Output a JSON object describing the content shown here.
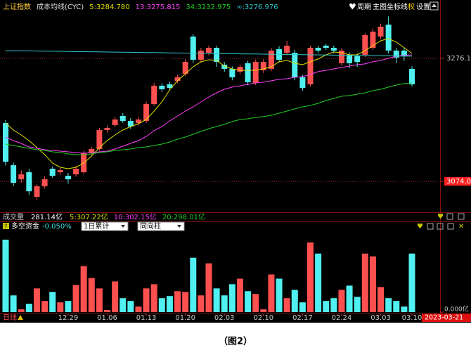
{
  "toolbar": {
    "index_name": "上证指数",
    "indicator": "成本均线(CYC)",
    "buttons": [
      "周期",
      "主图",
      "坐标线",
      "权",
      "设置"
    ]
  },
  "chart_data": [
    {
      "type": "candlestick",
      "up_color": "#ff5050",
      "down_color": "#50f0f0",
      "open": [
        3169.8,
        3100.5,
        3077.4,
        3089.0,
        3048.6,
        3065.9,
        3094.8,
        3089.0,
        3083.2,
        3085.5,
        3089.0,
        3120.2,
        3127.1,
        3158.3,
        3166.4,
        3181.4,
        3173.3,
        3169.8,
        3173.3,
        3201.0,
        3231.1,
        3233.4,
        3239.1,
        3250.7,
        3311.9,
        3273.8,
        3285.3,
        3293.4,
        3265.7,
        3258.8,
        3254.2,
        3268.0,
        3235.7,
        3256.5,
        3258.8,
        3291.1,
        3285.3,
        3285.3,
        3244.9,
        3233.4,
        3293.4,
        3296.9,
        3293.4,
        3268.0,
        3281.9,
        3279.6,
        3281.9,
        3293.4,
        3311.9,
        3331.5,
        3288.8,
        3288.8,
        3258.8
      ],
      "high": [
        3175,
        3105,
        3092,
        3094,
        3070,
        3082,
        3098,
        3096,
        3088,
        3099,
        3124,
        3131,
        3162,
        3166,
        3180,
        3186,
        3178,
        3180,
        3205,
        3236,
        3235,
        3238,
        3249,
        3275,
        3316,
        3293,
        3297,
        3297,
        3270,
        3263,
        3266,
        3272,
        3274,
        3275,
        3293,
        3296,
        3305,
        3290,
        3249,
        3297,
        3297,
        3300,
        3297,
        3293,
        3286,
        3284,
        3318,
        3325,
        3333,
        3345,
        3293,
        3293,
        3263
      ],
      "low": [
        3100,
        3066,
        3072,
        3052,
        3044,
        3062,
        3080,
        3085,
        3070,
        3082,
        3086,
        3116,
        3124,
        3154,
        3163,
        3170,
        3160,
        3166,
        3170,
        3198,
        3221,
        3224,
        3235,
        3247,
        3269,
        3269,
        3281,
        3262,
        3254,
        3240,
        3250,
        3232,
        3232,
        3252,
        3255,
        3269,
        3281,
        3240,
        3223,
        3230,
        3285,
        3290,
        3285,
        3264,
        3260,
        3262,
        3278,
        3290,
        3308,
        3284,
        3268,
        3272,
        3230
      ],
      "close": [
        3106.3,
        3071.7,
        3085.5,
        3057.7,
        3065.9,
        3077.4,
        3083.2,
        3092.4,
        3077.4,
        3094.8,
        3120.2,
        3127.1,
        3158.3,
        3161.8,
        3175.6,
        3173.3,
        3164.1,
        3175.6,
        3201.0,
        3231.1,
        3225.3,
        3227.6,
        3244.9,
        3270.3,
        3273.8,
        3288.8,
        3293.4,
        3270.3,
        3258.8,
        3244.9,
        3262.2,
        3236.8,
        3270.3,
        3270.3,
        3288.8,
        3273.8,
        3296.9,
        3244.9,
        3227.6,
        3293.4,
        3288.8,
        3293.4,
        3288.8,
        3288.8,
        3268.0,
        3270.3,
        3314.2,
        3320.0,
        3328.1,
        3288.8,
        3277.3,
        3279.6,
        3233.4
      ],
      "series": [
        {
          "name": "5:3284.780",
          "color": "#e0e000",
          "values": [
            3169.9,
            3158.3,
            3150.2,
            3141.0,
            3129.4,
            3117.9,
            3104.0,
            3097.1,
            3094.8,
            3097.1,
            3104.0,
            3115.6,
            3129.4,
            3141.0,
            3150.2,
            3158.3,
            3164.1,
            3168.7,
            3175.6,
            3189.5,
            3204.5,
            3224.2,
            3239.2,
            3250.7,
            3262.3,
            3270.4,
            3273.8,
            3272.7,
            3263.4,
            3258.8,
            3256.5,
            3256.5,
            3256.5,
            3258.8,
            3262.3,
            3270.4,
            3272.7,
            3268.0,
            3265.7,
            3270.4,
            3275.0,
            3281.9,
            3286.5,
            3285.4,
            3281.9,
            3281.9,
            3288.8,
            3296.9,
            3305.0,
            3308.5,
            3302.7,
            3293.5,
            3284.2
          ]
        },
        {
          "name": "13:3275.815",
          "color": "#ff40ff",
          "values": [
            3146.8,
            3141.0,
            3136.4,
            3130.6,
            3128.3,
            3126.0,
            3124.8,
            3123.7,
            3122.5,
            3121.4,
            3120.2,
            3121.4,
            3122.5,
            3123.7,
            3127.1,
            3131.8,
            3136.4,
            3141.0,
            3147.9,
            3157.2,
            3164.1,
            3173.3,
            3181.4,
            3189.5,
            3196.4,
            3204.5,
            3212.6,
            3219.5,
            3225.3,
            3228.8,
            3231.1,
            3233.4,
            3235.7,
            3236.9,
            3239.2,
            3241.5,
            3242.6,
            3244.9,
            3246.1,
            3249.6,
            3254.2,
            3256.5,
            3258.8,
            3261.1,
            3263.4,
            3265.7,
            3266.9,
            3270.4,
            3272.7,
            3276.1,
            3279.6,
            3280.8,
            3281.9
          ]
        },
        {
          "name": "34:3232.975",
          "color": "#20d020",
          "values": [
            3135.2,
            3132.9,
            3130.6,
            3128.3,
            3126.0,
            3124.8,
            3122.5,
            3121.4,
            3119.1,
            3117.9,
            3117.9,
            3119.1,
            3121.4,
            3122.5,
            3124.8,
            3126.0,
            3127.1,
            3129.4,
            3130.6,
            3132.9,
            3135.2,
            3138.7,
            3143.3,
            3146.8,
            3151.4,
            3156.0,
            3160.6,
            3164.1,
            3167.6,
            3172.2,
            3175.6,
            3176.8,
            3179.1,
            3180.3,
            3182.6,
            3186.0,
            3189.5,
            3193.0,
            3196.4,
            3198.7,
            3202.2,
            3206.8,
            3210.3,
            3213.8,
            3214.9,
            3217.2,
            3219.5,
            3223.0,
            3225.3,
            3228.8,
            3232.2,
            3234.6,
            3235.7
          ]
        },
        {
          "name": "∞:3276.976",
          "color": "#30c8d0",
          "values": [
            3288.8,
            3288.6,
            3288.4,
            3288.3,
            3288.1,
            3287.9,
            3287.7,
            3287.6,
            3287.4,
            3287.2,
            3287.0,
            3286.9,
            3286.7,
            3286.5,
            3286.3,
            3286.2,
            3286.0,
            3285.8,
            3285.6,
            3285.5,
            3285.3,
            3285.1,
            3284.9,
            3284.7,
            3284.6,
            3284.4,
            3284.2,
            3284.0,
            3283.9,
            3283.7,
            3283.5,
            3283.3,
            3283.2,
            3283.0,
            3282.8,
            3282.6,
            3282.5,
            3282.3,
            3282.1,
            3281.9,
            3281.8,
            3281.6,
            3281.4,
            3281.2,
            3281.1,
            3280.9,
            3280.7,
            3280.5,
            3280.4,
            3280.2,
            3279.8,
            3279.6,
            3279.6
          ]
        }
      ],
      "ylim": [
        3025.5,
        3354.6
      ],
      "yticks": [
        3276.1,
        {
          "value": 3074,
          "label": "3074.0"
        }
      ],
      "ytick_backgrounds": [
        null,
        "#ff2020"
      ],
      "grid": true
    },
    {
      "type": "bar",
      "title": "成交量",
      "value_text": "281.14亿",
      "legend_texts": [
        "5:307.22亿",
        "10:302.15亿",
        "20:298.01亿"
      ],
      "legend_colors": [
        "#e0e000",
        "#ff40ff",
        "#20d020"
      ],
      "categories": [
        null,
        null,
        null,
        null,
        null,
        null,
        null,
        null,
        "12.29",
        null,
        null,
        null,
        null,
        "01.06",
        null,
        null,
        null,
        null,
        "01.13",
        null,
        null,
        null,
        null,
        "01.20",
        null,
        null,
        null,
        null,
        "02.03",
        null,
        null,
        null,
        null,
        "02.10",
        null,
        null,
        null,
        null,
        "02.17",
        null,
        null,
        null,
        null,
        "02.24",
        null,
        null,
        null,
        null,
        "03.03",
        null,
        null,
        null,
        "03.10"
      ],
      "values": [
        104,
        24,
        4,
        12,
        34,
        16,
        29,
        14,
        16,
        39,
        66,
        49,
        34,
        3,
        44,
        20,
        16,
        8,
        34,
        40,
        20,
        23,
        30,
        29,
        78,
        24,
        70,
        34,
        24,
        40,
        48,
        30,
        26,
        4,
        54,
        48,
        20,
        32,
        14,
        100,
        84,
        16,
        20,
        32,
        38,
        22,
        84,
        80,
        36,
        20,
        16,
        8,
        84
      ],
      "ylim": [
        0,
        115
      ],
      "yticks": [
        {
          "value": 0,
          "label": "0.000亿"
        }
      ]
    }
  ],
  "indicator_panel": {
    "title": "多空资金",
    "value": "-0.050%",
    "options": [
      "1日累计",
      "同向柱"
    ]
  },
  "status": {
    "period": "日线",
    "date": "2023-03-21"
  },
  "caption": "（图2）"
}
